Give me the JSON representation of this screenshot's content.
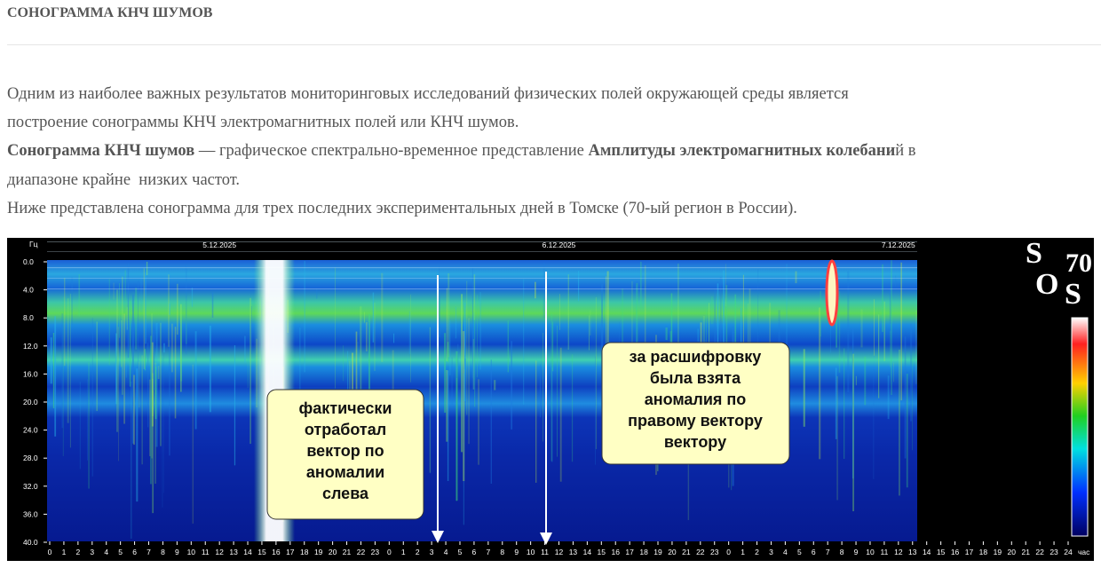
{
  "header": {
    "title": "СОНОГРАММА КНЧ ШУМОВ"
  },
  "intro": {
    "lines": [
      [
        "Одним из наиболее важных результатов мониторинговых исследований физических полей окружающей среды является"
      ],
      [
        "построение сонограммы КНЧ электромагнитных полей или КНЧ шумов."
      ],
      [
        "Сонограмма КНЧ шумов",
        " — графическое спектрально-временное представление ",
        "Амплитуды электромагнитных колебани",
        "й в"
      ],
      [
        "диапазоне крайне  низких частот."
      ],
      [
        "Ниже представлена сонограмма для трех последних экспериментальных дней в Томске (70-ый регион в России)."
      ]
    ]
  },
  "sonogram": {
    "y_unit": "Гц",
    "y_labels": [
      "0.0",
      "4.0",
      "8.0",
      "12.0",
      "16.0",
      "20.0",
      "24.0",
      "28.0",
      "32.0",
      "36.0",
      "40.0"
    ],
    "dates": [
      "5.12.2025",
      "6.12.2025",
      "7.12.2025"
    ],
    "hour_labels": [
      "0",
      "1",
      "2",
      "3",
      "4",
      "5",
      "6",
      "7",
      "8",
      "9",
      "10",
      "11",
      "12",
      "13",
      "14",
      "15",
      "16",
      "17",
      "18",
      "19",
      "20",
      "21",
      "22",
      "23",
      "0",
      "1",
      "2",
      "3",
      "4",
      "5",
      "6",
      "7",
      "8",
      "9",
      "10",
      "11",
      "12",
      "13",
      "14",
      "15",
      "16",
      "17",
      "18",
      "19",
      "20",
      "21",
      "22",
      "23",
      "0",
      "1",
      "2",
      "3",
      "4",
      "5",
      "6",
      "7",
      "8",
      "9",
      "10",
      "11",
      "12",
      "13",
      "14",
      "15",
      "16",
      "17",
      "18",
      "19",
      "20",
      "21",
      "22",
      "23",
      "24"
    ],
    "x_unit": "час",
    "logo": [
      "S",
      "70",
      "O",
      "S"
    ],
    "callouts": [
      [
        "фактически",
        "отработал",
        "вектор по",
        "аномалии",
        "слева"
      ],
      [
        "за расшифровку",
        "была взята",
        "аномалия по",
        "правому вектору",
        "вектору"
      ]
    ]
  }
}
